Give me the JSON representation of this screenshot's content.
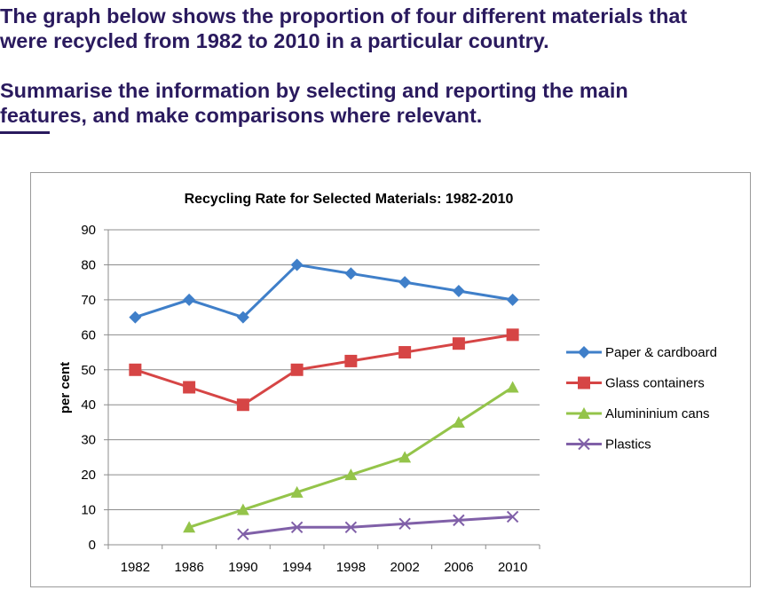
{
  "prompt": {
    "line1": "The graph below shows the proportion of four different materials that",
    "line2": "were recycled from 1982 to 2010 in a particular country.",
    "line3": "Summarise the information by selecting and reporting the main",
    "line4": "features, and make comparisons where relevant."
  },
  "colors": {
    "prompt_text": "#2a1a5e",
    "paper": "#3f7fc9",
    "glass": "#d64545",
    "aluminium": "#94c44a",
    "plastics": "#8060a8"
  },
  "chart_data": {
    "type": "line",
    "title": "Recycling Rate for Selected Materials: 1982-2010",
    "xlabel": "",
    "ylabel": "per cent",
    "ylim": [
      0,
      90
    ],
    "yticks": [
      "0",
      "10",
      "20",
      "30",
      "40",
      "50",
      "60",
      "70",
      "80",
      "90"
    ],
    "categories": [
      "1982",
      "1986",
      "1990",
      "1994",
      "1998",
      "2002",
      "2006",
      "2010"
    ],
    "grid": true,
    "legend_position": "right",
    "series": [
      {
        "name": "Paper & cardboard",
        "marker": "diamond",
        "color": "#3f7fc9",
        "values": [
          65,
          70,
          65,
          80,
          77.5,
          75,
          72.5,
          70
        ]
      },
      {
        "name": "Glass containers",
        "marker": "square",
        "color": "#d64545",
        "values": [
          50,
          45,
          40,
          50,
          52.5,
          55,
          57.5,
          60
        ]
      },
      {
        "name": "Aluminium cans",
        "marker": "triangle",
        "color": "#94c44a",
        "values": [
          null,
          5,
          10,
          15,
          20,
          25,
          35,
          45
        ]
      },
      {
        "name": "Plastics",
        "marker": "x",
        "color": "#8060a8",
        "values": [
          null,
          null,
          3,
          5,
          5,
          6,
          7,
          8
        ]
      }
    ],
    "legend_labels": [
      "Paper & cardboard",
      "Glass containers",
      "Alumininium cans",
      "Plastics"
    ]
  }
}
